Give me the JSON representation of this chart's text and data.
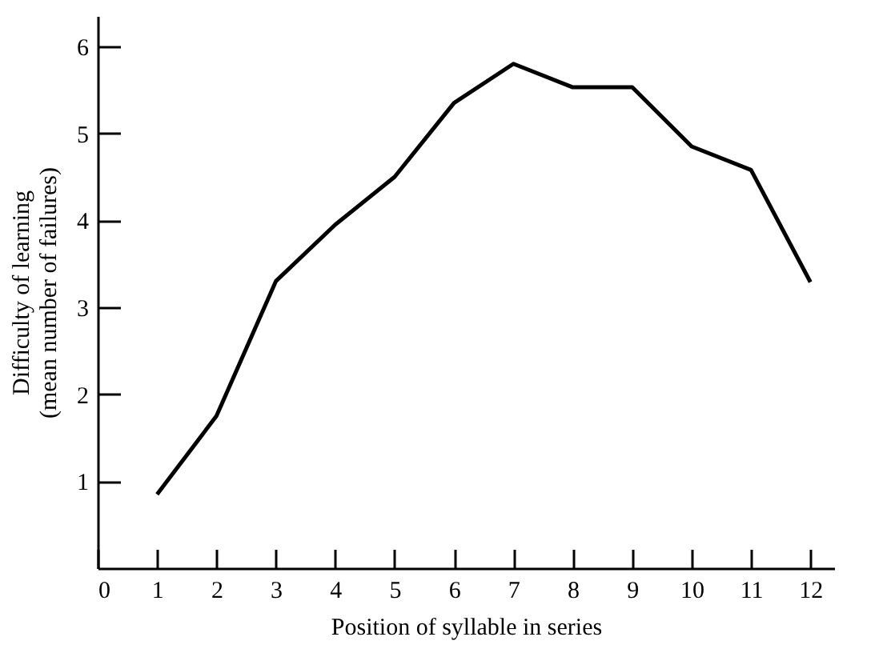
{
  "chart_data": {
    "type": "line",
    "xlabel": "Position of syllable in series",
    "ylabel": "Difficulty of learning\n(mean number of failures)",
    "x": [
      1,
      2,
      3,
      4,
      5,
      6,
      7,
      8,
      9,
      10,
      11,
      12
    ],
    "series": [
      {
        "color": "#000000",
        "values": [
          0.85,
          1.75,
          3.3,
          3.95,
          4.5,
          5.35,
          5.8,
          5.53,
          5.53,
          4.85,
          4.58,
          3.29
        ]
      }
    ],
    "xlim": [
      0,
      12.4
    ],
    "xticks": [
      0,
      1,
      2,
      3,
      4,
      5,
      6,
      7,
      8,
      9,
      10,
      11,
      12
    ],
    "ylim": [
      0,
      6.35
    ],
    "yticks": [
      1,
      2,
      3,
      4,
      5,
      6
    ],
    "grid": false,
    "marker": "none",
    "line_style": "solid"
  }
}
